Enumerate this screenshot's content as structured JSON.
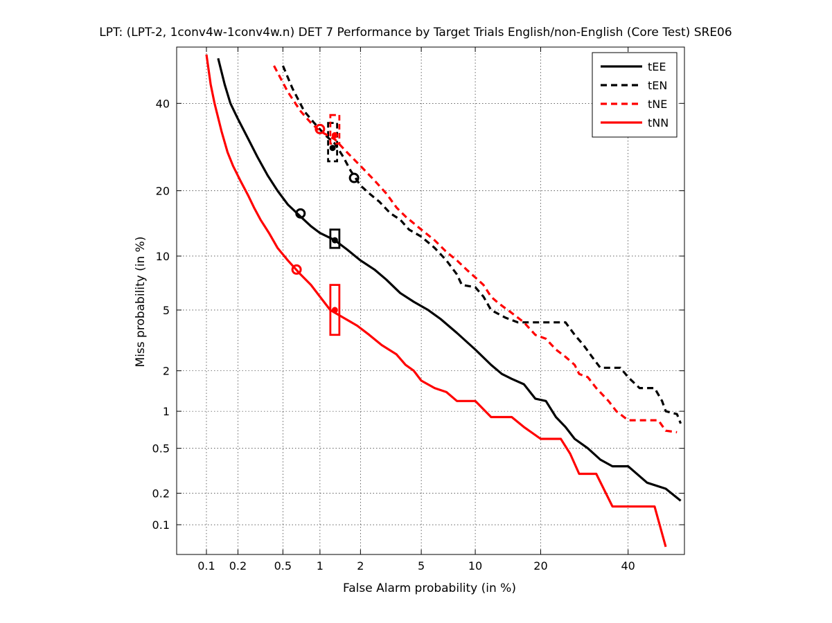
{
  "chart_data": {
    "type": "line",
    "scale": "normal-deviate (DET)",
    "title": "LPT: (LPT-2, 1conv4w-1conv4w.n) DET 7 Performance by Target Trials English/non-English (Core Test) SRE06",
    "xlabel": "False Alarm probability (in %)",
    "ylabel": "Miss probability (in %)",
    "xlim": [
      0.05,
      55
    ],
    "ylim": [
      0.05,
      55
    ],
    "xticks": [
      0.1,
      0.2,
      0.5,
      1,
      2,
      5,
      10,
      20,
      40
    ],
    "xtick_labels": [
      "0.1",
      "0.2",
      "0.5",
      "1",
      "2",
      "5",
      "10",
      "20",
      "40"
    ],
    "yticks": [
      0.1,
      0.2,
      0.5,
      1,
      2,
      5,
      10,
      20,
      40
    ],
    "ytick_labels": [
      "0.1",
      "0.2",
      "0.5",
      "1",
      "2",
      "5",
      "10",
      "20",
      "40"
    ],
    "grid": true,
    "legend_position": "top-right",
    "colors": {
      "black": "#000000",
      "red": "#ff0000"
    },
    "series": [
      {
        "name": "tEE",
        "color": "#000000",
        "dash": "solid",
        "points": [
          [
            0.13,
            52
          ],
          [
            0.15,
            45
          ],
          [
            0.17,
            40
          ],
          [
            0.2,
            36
          ],
          [
            0.25,
            31
          ],
          [
            0.3,
            27
          ],
          [
            0.37,
            23
          ],
          [
            0.45,
            20
          ],
          [
            0.55,
            17.5
          ],
          [
            0.7,
            15.5
          ],
          [
            0.85,
            14
          ],
          [
            1,
            13
          ],
          [
            1.3,
            12
          ],
          [
            1.6,
            10.8
          ],
          [
            2,
            9.5
          ],
          [
            2.5,
            8.5
          ],
          [
            3,
            7.5
          ],
          [
            3.7,
            6.3
          ],
          [
            4.5,
            5.6
          ],
          [
            5.5,
            5
          ],
          [
            6.5,
            4.4
          ],
          [
            8,
            3.6
          ],
          [
            10,
            2.8
          ],
          [
            12,
            2.2
          ],
          [
            13.5,
            1.9
          ],
          [
            15,
            1.75
          ],
          [
            17,
            1.6
          ],
          [
            19,
            1.25
          ],
          [
            21,
            1.2
          ],
          [
            23,
            0.9
          ],
          [
            25,
            0.75
          ],
          [
            27,
            0.6
          ],
          [
            30,
            0.5
          ],
          [
            33,
            0.4
          ],
          [
            36,
            0.35
          ],
          [
            40,
            0.35
          ],
          [
            45,
            0.25
          ],
          [
            50,
            0.22
          ],
          [
            54,
            0.17
          ]
        ],
        "actual_dcf": [
          1.3,
          12
        ],
        "min_dcf": [
          0.7,
          16
        ],
        "confidence_box": {
          "x": 1.3,
          "y_low": 11,
          "y_high": 13.5
        }
      },
      {
        "name": "tEN",
        "color": "#000000",
        "dash": "dashed",
        "points": [
          [
            0.5,
            50
          ],
          [
            0.6,
            44
          ],
          [
            0.75,
            38
          ],
          [
            0.9,
            35
          ],
          [
            1.1,
            32
          ],
          [
            1.3,
            30
          ],
          [
            1.5,
            27
          ],
          [
            1.7,
            24
          ],
          [
            2,
            21
          ],
          [
            2.3,
            19.5
          ],
          [
            2.7,
            18
          ],
          [
            3.2,
            16
          ],
          [
            3.7,
            15
          ],
          [
            4.2,
            13.5
          ],
          [
            5,
            12.5
          ],
          [
            6,
            11
          ],
          [
            7,
            9.5
          ],
          [
            8,
            8
          ],
          [
            8.5,
            7
          ],
          [
            10,
            6.8
          ],
          [
            11,
            6
          ],
          [
            12,
            5
          ],
          [
            14,
            4.5
          ],
          [
            16,
            4.2
          ],
          [
            20,
            4.2
          ],
          [
            25,
            4.2
          ],
          [
            27,
            3.5
          ],
          [
            29,
            3
          ],
          [
            31,
            2.5
          ],
          [
            33,
            2.1
          ],
          [
            38,
            2.1
          ],
          [
            40,
            1.8
          ],
          [
            43,
            1.5
          ],
          [
            47,
            1.5
          ],
          [
            49,
            1.2
          ],
          [
            50,
            1
          ],
          [
            53,
            0.95
          ],
          [
            54,
            0.8
          ]
        ],
        "actual_dcf": [
          1.25,
          29
        ],
        "min_dcf": [
          1.8,
          22.5
        ],
        "confidence_box": {
          "x": 1.25,
          "y_low": 26,
          "y_high": 35
        }
      },
      {
        "name": "tNE",
        "color": "#ff0000",
        "dash": "dashed",
        "points": [
          [
            0.42,
            50
          ],
          [
            0.55,
            43
          ],
          [
            0.7,
            38
          ],
          [
            0.85,
            35
          ],
          [
            1,
            33
          ],
          [
            1.3,
            31
          ],
          [
            1.6,
            28
          ],
          [
            2,
            25
          ],
          [
            2.5,
            22
          ],
          [
            3,
            19.5
          ],
          [
            3.5,
            17
          ],
          [
            4,
            15.5
          ],
          [
            5,
            13.5
          ],
          [
            6,
            12
          ],
          [
            7,
            10.5
          ],
          [
            8,
            9.5
          ],
          [
            9,
            8.5
          ],
          [
            10,
            7.7
          ],
          [
            11,
            7
          ],
          [
            12,
            6
          ],
          [
            13,
            5.5
          ],
          [
            15,
            4.8
          ],
          [
            17,
            4.2
          ],
          [
            19,
            3.5
          ],
          [
            21,
            3.3
          ],
          [
            23,
            2.8
          ],
          [
            25,
            2.5
          ],
          [
            27,
            2.2
          ],
          [
            28,
            1.9
          ],
          [
            30,
            1.8
          ],
          [
            32,
            1.5
          ],
          [
            35,
            1.2
          ],
          [
            37,
            1
          ],
          [
            40,
            0.85
          ],
          [
            48,
            0.85
          ],
          [
            50,
            0.7
          ],
          [
            53,
            0.68
          ]
        ],
        "actual_dcf": [
          1.3,
          32
        ],
        "min_dcf": [
          1.0,
          33.5
        ],
        "confidence_box": {
          "x": 1.3,
          "y_low": 30,
          "y_high": 37
        }
      },
      {
        "name": "tNN",
        "color": "#ff0000",
        "dash": "solid",
        "points": [
          [
            0.1,
            53
          ],
          [
            0.11,
            45
          ],
          [
            0.12,
            40
          ],
          [
            0.14,
            33
          ],
          [
            0.16,
            28
          ],
          [
            0.18,
            25
          ],
          [
            0.21,
            22
          ],
          [
            0.25,
            19
          ],
          [
            0.28,
            17
          ],
          [
            0.32,
            15
          ],
          [
            0.38,
            13
          ],
          [
            0.45,
            11
          ],
          [
            0.55,
            9.5
          ],
          [
            0.7,
            8
          ],
          [
            0.85,
            7
          ],
          [
            1,
            6
          ],
          [
            1.2,
            5
          ],
          [
            1.5,
            4.5
          ],
          [
            1.9,
            4
          ],
          [
            2.3,
            3.5
          ],
          [
            2.8,
            3
          ],
          [
            3.5,
            2.6
          ],
          [
            4,
            2.2
          ],
          [
            4.5,
            2
          ],
          [
            5,
            1.7
          ],
          [
            6,
            1.5
          ],
          [
            7,
            1.4
          ],
          [
            8,
            1.2
          ],
          [
            10,
            1.2
          ],
          [
            12,
            0.9
          ],
          [
            15,
            0.9
          ],
          [
            17,
            0.75
          ],
          [
            20,
            0.6
          ],
          [
            24,
            0.6
          ],
          [
            26,
            0.45
          ],
          [
            28,
            0.3
          ],
          [
            32,
            0.3
          ],
          [
            36,
            0.15
          ],
          [
            40,
            0.15
          ],
          [
            44,
            0.15
          ],
          [
            47,
            0.15
          ],
          [
            50,
            0.06
          ]
        ],
        "actual_dcf": [
          1.3,
          5
        ],
        "min_dcf": [
          0.65,
          8.5
        ],
        "confidence_box": {
          "x": 1.3,
          "y_low": 3.5,
          "y_high": 7
        }
      }
    ]
  }
}
